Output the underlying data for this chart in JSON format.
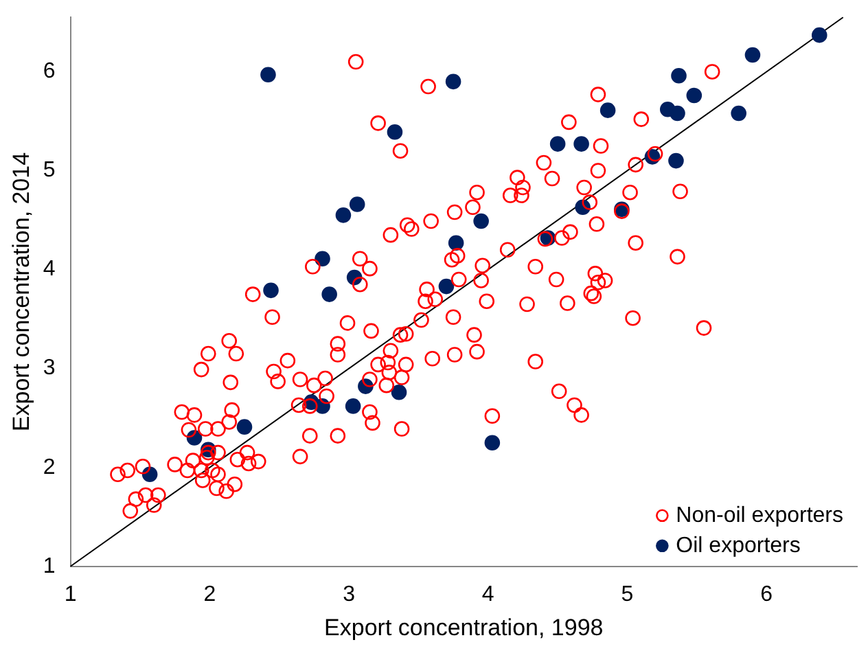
{
  "chart_data": {
    "type": "scatter",
    "xlabel": "Export concentration, 1998",
    "ylabel": "Export concentration, 2014",
    "xlim": [
      1,
      6.65
    ],
    "ylim": [
      1,
      6.55
    ],
    "xticks": [
      1,
      2,
      3,
      4,
      5,
      6
    ],
    "yticks": [
      1,
      2,
      3,
      4,
      5,
      6
    ],
    "grid": false,
    "legend": "bottom right",
    "marker": "circle",
    "series": [
      {
        "name": "Non-oil exporters",
        "color": "#ff0000",
        "x": [
          3.05,
          3.57,
          3.21,
          3.37,
          4.79,
          4.58,
          4.4,
          4.21,
          4.46,
          4.25,
          4.16,
          4.24,
          4.79,
          4.69,
          4.73,
          3.92,
          3.89,
          3.76,
          3.59,
          3.42,
          3.45,
          3.3,
          4.78,
          4.59,
          4.53,
          4.41,
          4.14,
          4.34,
          4.49,
          4.77,
          4.79,
          3.08,
          3.15,
          3.74,
          3.78,
          3.96,
          3.79,
          3.95,
          3.08,
          3.56,
          4.74,
          5.61,
          5.1,
          4.81,
          5.2,
          5.06,
          5.02,
          5.38,
          4.96,
          5.06,
          5.36,
          4.84,
          4.76,
          5.04,
          5.55,
          2.74,
          2.31,
          2.45,
          2.14,
          1.99,
          2.19,
          1.94,
          2.15,
          2.56,
          2.46,
          2.49,
          2.92,
          2.92,
          2.65,
          2.75,
          2.83,
          2.84,
          2.64,
          2.72,
          2.72,
          2.65,
          2.92,
          1.8,
          1.89,
          2.16,
          2.14,
          1.85,
          1.97,
          2.06,
          1.75,
          1.84,
          1.88,
          1.99,
          2.06,
          1.98,
          2.06,
          1.94,
          2.02,
          1.95,
          2.05,
          2.12,
          2.18,
          2.2,
          2.27,
          2.28,
          2.35,
          1.52,
          1.41,
          1.34,
          1.47,
          1.54,
          1.63,
          1.43,
          1.6,
          3.99,
          4.28,
          4.57,
          3.55,
          3.62,
          3.75,
          3.52,
          2.99,
          3.16,
          3.37,
          3.41,
          3.9,
          3.92,
          3.3,
          3.6,
          3.76,
          4.34,
          3.21,
          3.28,
          3.41,
          3.29,
          3.38,
          3.15,
          3.27,
          3.15,
          3.17,
          3.38,
          4.03,
          4.51,
          4.62,
          4.67
        ],
        "values": [
          6.1,
          5.85,
          5.48,
          5.2,
          5.77,
          5.49,
          5.08,
          4.93,
          4.92,
          4.83,
          4.75,
          4.75,
          5.0,
          4.83,
          4.68,
          4.78,
          4.63,
          4.58,
          4.49,
          4.45,
          4.41,
          4.35,
          4.46,
          4.38,
          4.32,
          4.31,
          4.2,
          4.03,
          3.9,
          3.96,
          3.87,
          4.11,
          4.01,
          4.1,
          4.14,
          4.04,
          3.9,
          3.89,
          3.85,
          3.8,
          3.76,
          6.0,
          5.52,
          5.25,
          5.17,
          5.06,
          4.78,
          4.79,
          4.59,
          4.27,
          4.13,
          3.89,
          3.73,
          3.51,
          3.41,
          4.03,
          3.75,
          3.52,
          3.28,
          3.15,
          3.15,
          2.99,
          2.86,
          3.08,
          2.97,
          2.87,
          3.25,
          3.14,
          2.89,
          2.83,
          2.9,
          2.72,
          2.63,
          2.62,
          2.32,
          2.11,
          2.32,
          2.56,
          2.53,
          2.58,
          2.46,
          2.38,
          2.39,
          2.39,
          2.03,
          1.97,
          2.07,
          2.15,
          2.15,
          2.1,
          1.93,
          1.97,
          1.97,
          1.87,
          1.79,
          1.76,
          1.83,
          2.08,
          2.15,
          2.04,
          2.06,
          2.01,
          1.97,
          1.93,
          1.68,
          1.72,
          1.72,
          1.56,
          1.62,
          3.68,
          3.65,
          3.66,
          3.68,
          3.7,
          3.52,
          3.49,
          3.46,
          3.38,
          3.34,
          3.35,
          3.34,
          3.17,
          3.18,
          3.1,
          3.14,
          3.07,
          3.04,
          3.06,
          3.04,
          2.96,
          2.91,
          2.89,
          2.83,
          2.56,
          2.45,
          2.39,
          2.52,
          2.77,
          2.63,
          2.53
        ]
      },
      {
        "name": "Oil exporters",
        "color": "#002060",
        "x": [
          2.42,
          3.75,
          6.38,
          5.9,
          5.37,
          5.48,
          4.86,
          5.29,
          5.36,
          5.8,
          5.18,
          5.35,
          4.96,
          3.33,
          4.5,
          4.67,
          3.06,
          2.96,
          3.95,
          4.68,
          4.43,
          3.77,
          3.04,
          3.7,
          2.81,
          2.44,
          2.86,
          2.73,
          2.81,
          2.25,
          1.89,
          1.99,
          1.57,
          3.12,
          3.36,
          3.03,
          4.03
        ],
        "values": [
          5.97,
          5.9,
          6.37,
          6.17,
          5.96,
          5.76,
          5.61,
          5.62,
          5.58,
          5.58,
          5.14,
          5.1,
          4.61,
          5.39,
          5.27,
          5.27,
          4.66,
          4.55,
          4.49,
          4.63,
          4.32,
          4.27,
          3.92,
          3.83,
          4.11,
          3.79,
          3.75,
          2.66,
          2.62,
          2.41,
          2.3,
          2.18,
          1.93,
          2.82,
          2.76,
          2.62,
          2.25
        ]
      },
      {
        "type": "line",
        "color": "#000000",
        "marker": "none",
        "x": [
          1,
          6.55
        ],
        "values": [
          1,
          6.55
        ]
      }
    ]
  }
}
